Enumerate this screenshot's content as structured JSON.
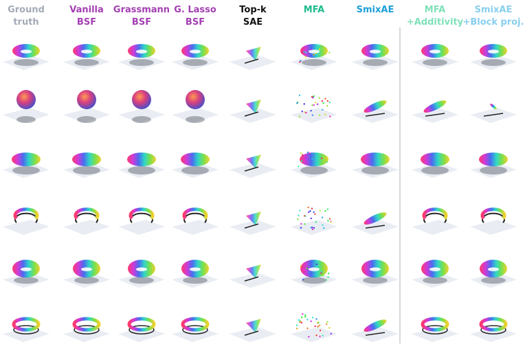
{
  "columns": [
    {
      "lines": [
        "Ground",
        "truth"
      ],
      "color": "#a3abb7"
    },
    {
      "lines": [
        "Vanilla",
        "BSF"
      ],
      "color": "#a43fb3"
    },
    {
      "lines": [
        "Grassmann",
        "BSF"
      ],
      "color": "#a43fb3"
    },
    {
      "lines": [
        "G. Lasso",
        "BSF"
      ],
      "color": "#a43fb3"
    },
    {
      "lines": [
        "Top-k",
        "SAE"
      ],
      "color": "#111111"
    },
    {
      "lines": [
        "MFA"
      ],
      "color": "#1dbb8c"
    },
    {
      "lines": [
        "SmixAE"
      ],
      "color": "#1c9fd9"
    },
    {
      "lines": [
        "MFA",
        "+Additivity"
      ],
      "color": "#7fe1b9"
    },
    {
      "lines": [
        "SmixAE",
        "+Block proj."
      ],
      "color": "#88cfee"
    }
  ]
}
